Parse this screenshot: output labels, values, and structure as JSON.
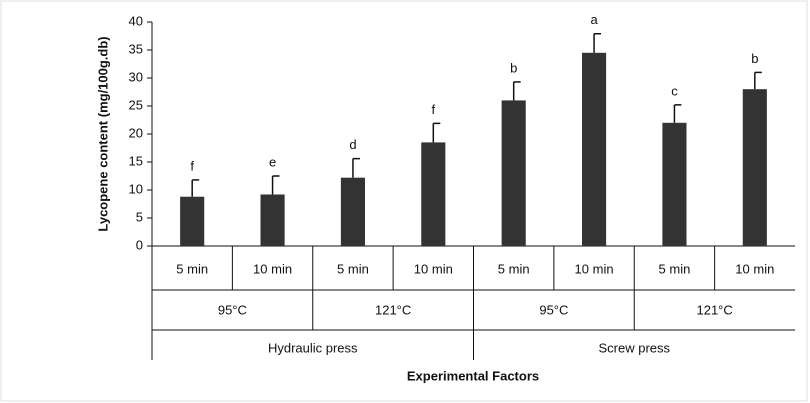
{
  "chart_data": {
    "type": "bar",
    "y_label": "Lycopene content (mg/100g.db)",
    "x_label": "Experimental Factors",
    "categories": [
      "5 min",
      "10 min",
      "5 min",
      "10 min",
      "5 min",
      "10 min",
      "5 min",
      "10 min"
    ],
    "temperatures": [
      "95°C",
      "121°C",
      "95°C",
      "121°C"
    ],
    "presses": [
      "Hydraulic press",
      "Screw press"
    ],
    "values": [
      8.8,
      9.2,
      12.2,
      18.5,
      26,
      34.5,
      22,
      28
    ],
    "errors": [
      3,
      3.3,
      3.4,
      3.4,
      3.3,
      3.4,
      3.2,
      3
    ],
    "letters": [
      "f",
      "e",
      "d",
      "f",
      "b",
      "a",
      "c",
      "b"
    ],
    "color": "#333333",
    "ylim": [
      0,
      40
    ],
    "yticks": [
      0,
      5,
      10,
      15,
      20,
      25,
      30,
      35,
      40
    ],
    "grid": false
  }
}
